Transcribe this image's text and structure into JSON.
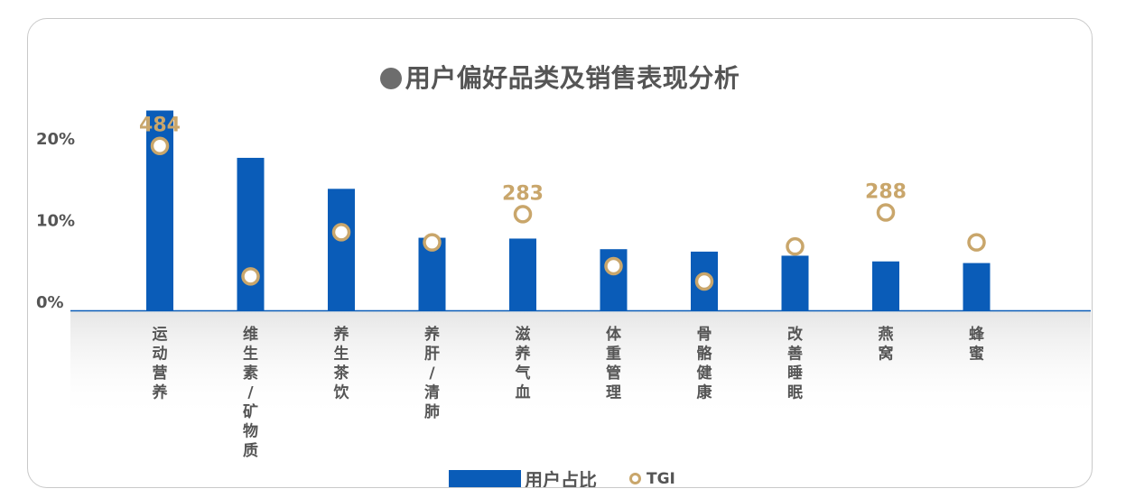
{
  "chart_data": {
    "type": "bar",
    "title": "用户偏好品类及销售表现分析",
    "categories": [
      "运动营养",
      "维生素/矿物质",
      "养生茶饮",
      "养肝/清肺",
      "滋养气血",
      "体重管理",
      "骨骼健康",
      "改善睡眠",
      "燕窝",
      "蜂蜜"
    ],
    "series": [
      {
        "name": "用户占比",
        "type": "bar",
        "values": [
          24.5,
          18.7,
          14.9,
          8.9,
          8.8,
          7.5,
          7.2,
          6.7,
          6.0,
          5.8
        ]
      },
      {
        "name": "TGI",
        "type": "scatter",
        "values": [
          484,
          100,
          230,
          200,
          283,
          130,
          85,
          188,
          288,
          200
        ]
      }
    ],
    "tgi_labels": [
      {
        "index": 0,
        "text": "484"
      },
      {
        "index": 4,
        "text": "283"
      },
      {
        "index": 8,
        "text": "288"
      }
    ],
    "yticks": [
      "0%",
      "10%",
      "20%"
    ],
    "ylim": [
      0,
      25
    ],
    "tgi_lim": [
      0,
      600
    ],
    "legend": "bottom",
    "colors": {
      "bar": "#0a5cb8",
      "tgi": "#c9a66b",
      "axis_text": "#555555"
    }
  },
  "legend": {
    "bar_label": "用户占比",
    "tgi_label": "TGI"
  }
}
